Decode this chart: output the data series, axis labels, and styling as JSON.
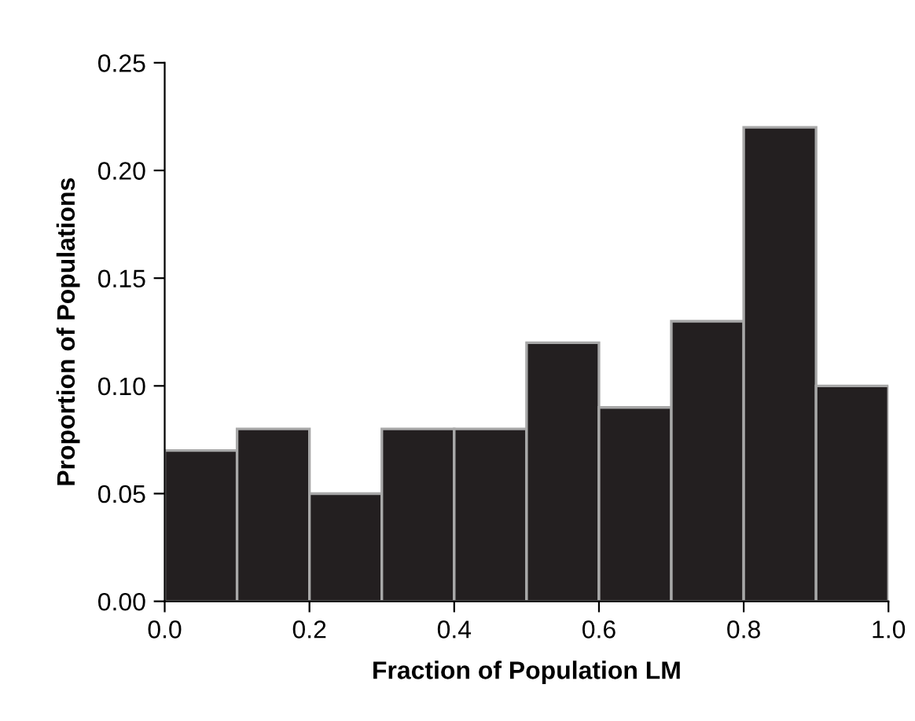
{
  "chart_data": {
    "type": "histogram",
    "xlabel": "Fraction of Population LM",
    "ylabel": "Proportion of Populations",
    "bins": [
      0.0,
      0.1,
      0.2,
      0.3,
      0.4,
      0.5,
      0.6,
      0.7,
      0.8,
      0.9,
      1.0
    ],
    "values": [
      0.07,
      0.08,
      0.05,
      0.08,
      0.08,
      0.12,
      0.09,
      0.13,
      0.22,
      0.1
    ],
    "color": "#231f20",
    "xlim": [
      0.0,
      1.0
    ],
    "xticks": [
      {
        "value": 0.0,
        "label": "0.0"
      },
      {
        "value": 0.2,
        "label": "0.2"
      },
      {
        "value": 0.4,
        "label": "0.4"
      },
      {
        "value": 0.6,
        "label": "0.6"
      },
      {
        "value": 0.8,
        "label": "0.8"
      },
      {
        "value": 1.0,
        "label": "1.0"
      }
    ],
    "ylim": [
      0.0,
      0.25
    ],
    "yticks": [
      {
        "value": 0.0,
        "label": "0.00"
      },
      {
        "value": 0.05,
        "label": "0.05"
      },
      {
        "value": 0.1,
        "label": "0.10"
      },
      {
        "value": 0.15,
        "label": "0.15"
      },
      {
        "value": 0.2,
        "label": "0.20"
      },
      {
        "value": 0.25,
        "label": "0.25"
      }
    ],
    "grid": false,
    "legend": false
  }
}
